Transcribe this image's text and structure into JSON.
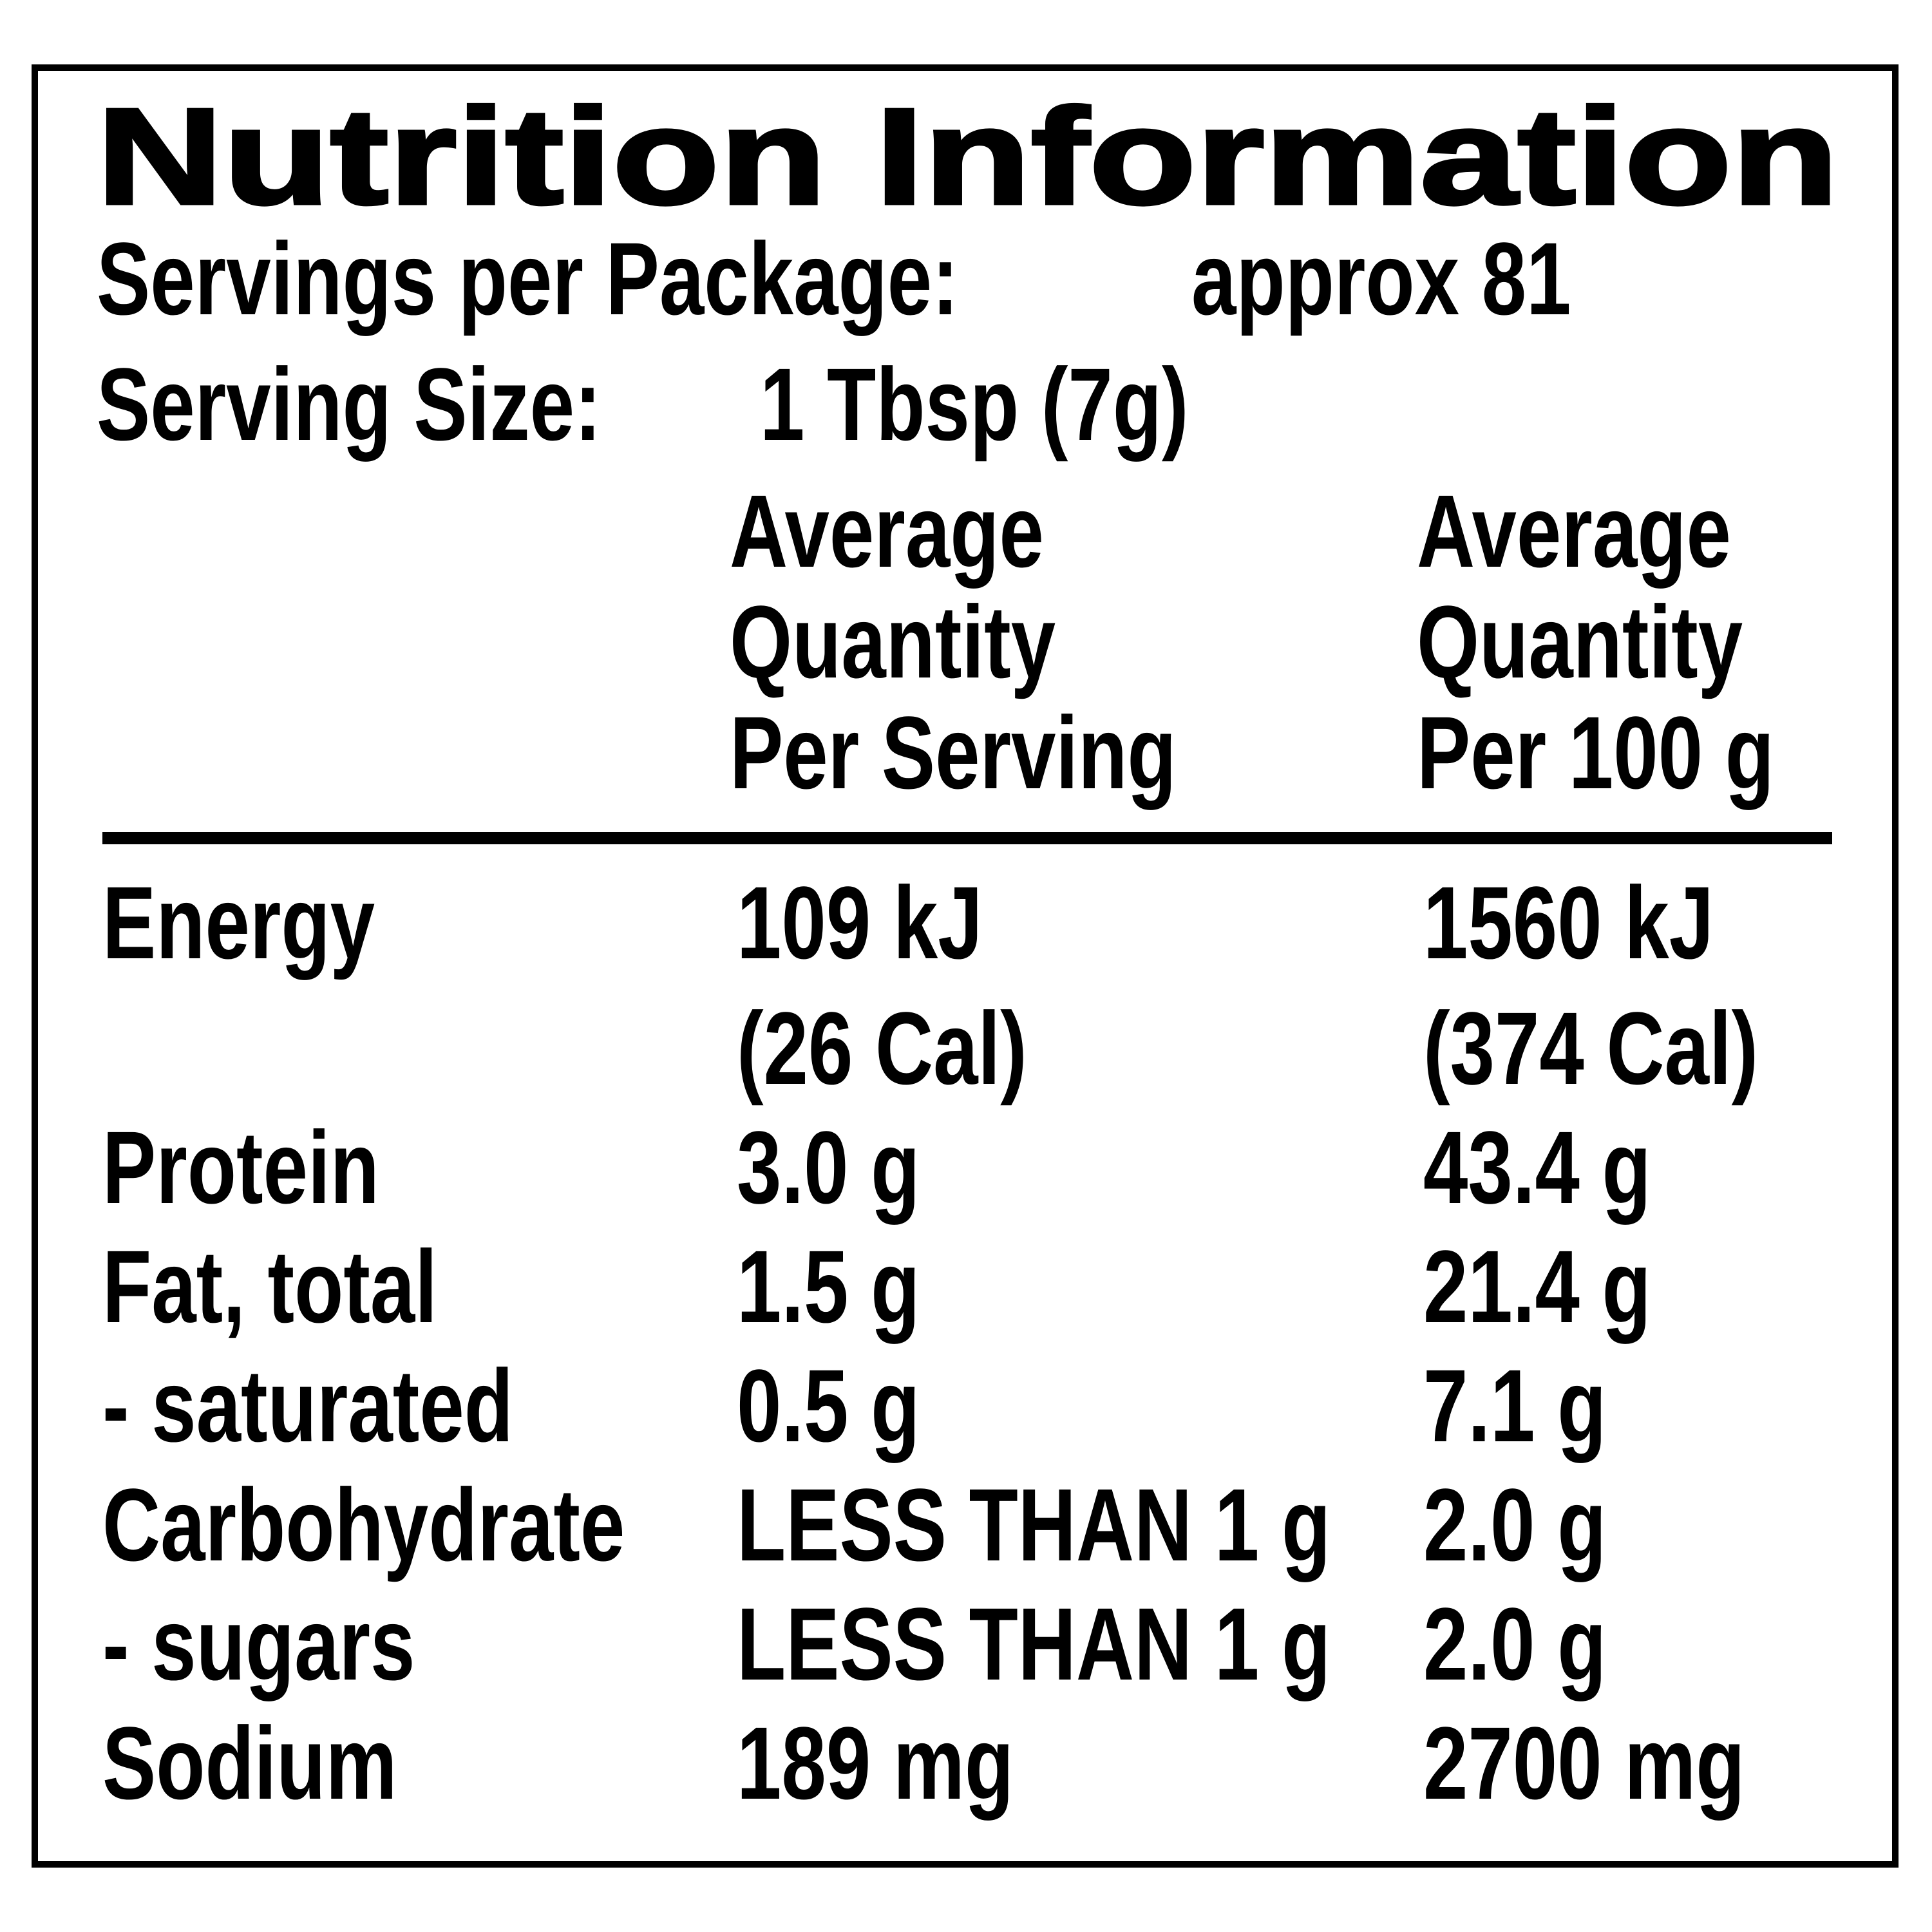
{
  "title": "Nutrition Information",
  "servings_per_package": {
    "label": "Servings per Package:",
    "value": "approx 81"
  },
  "serving_size": {
    "label": "Serving Size:",
    "value": "1 Tbsp (7g)"
  },
  "columns": [
    [
      "Average",
      "Quantity",
      "Per Serving"
    ],
    [
      "Average",
      "Quantity",
      "Per 100 g"
    ]
  ],
  "rows": [
    {
      "name": "Energy",
      "per_serving": [
        "109 kJ",
        "(26 Cal)"
      ],
      "per_100g": [
        "1560 kJ",
        "(374 Cal)"
      ]
    },
    {
      "name": "Protein",
      "per_serving": [
        "3.0 g"
      ],
      "per_100g": [
        "43.4 g"
      ]
    },
    {
      "name": "Fat, total",
      "per_serving": [
        "1.5 g"
      ],
      "per_100g": [
        "21.4 g"
      ]
    },
    {
      "name": "- saturated",
      "per_serving": [
        "0.5 g"
      ],
      "per_100g": [
        "7.1 g"
      ]
    },
    {
      "name": "Carbohydrate",
      "per_serving": [
        "LESS THAN 1 g"
      ],
      "per_100g": [
        "2.0 g"
      ]
    },
    {
      "name": "- sugars",
      "per_serving": [
        "LESS THAN 1 g"
      ],
      "per_100g": [
        "2.0 g"
      ]
    },
    {
      "name": "Sodium",
      "per_serving": [
        "189 mg"
      ],
      "per_100g": [
        "2700 mg"
      ]
    }
  ]
}
